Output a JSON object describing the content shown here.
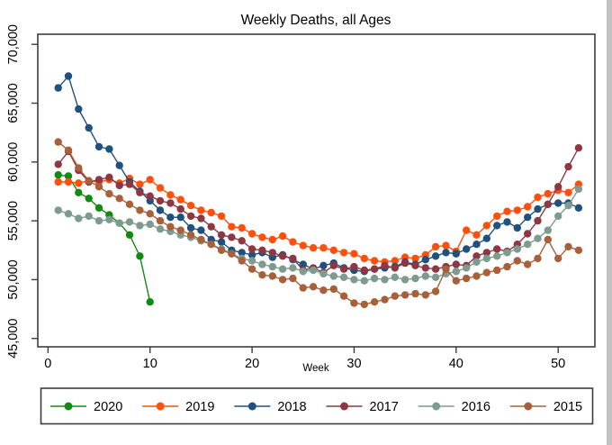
{
  "chart_data": {
    "type": "line",
    "title": "Weekly Deaths, all Ages",
    "xlabel": "Week",
    "ylabel": "",
    "grid": false,
    "legend_position": "bottom",
    "frame_color": "#3d3d3d",
    "xlim": [
      -1,
      53.6
    ],
    "ylim": [
      44290,
      70860
    ],
    "x_ticks": [
      0,
      10,
      20,
      30,
      40,
      50
    ],
    "y_ticks": [
      45000,
      50000,
      55000,
      60000,
      65000,
      70000
    ],
    "y_tick_labels": [
      "45,000",
      "50,000",
      "55,000",
      "60,000",
      "65,000",
      "70,000"
    ],
    "series": [
      {
        "name": "2020",
        "color": "#128a12",
        "start_week": 1,
        "values": [
          58900,
          58800,
          57400,
          56900,
          56100,
          55500,
          54800,
          53800,
          52000,
          48100
        ]
      },
      {
        "name": "2019",
        "color": "#ff4f0f",
        "start_week": 1,
        "values": [
          58300,
          58300,
          58200,
          58400,
          58300,
          58500,
          58200,
          58600,
          58100,
          58500,
          57800,
          57200,
          56800,
          56300,
          55900,
          55700,
          55400,
          54500,
          54400,
          53900,
          53600,
          53400,
          53700,
          53200,
          52900,
          52700,
          52700,
          52500,
          52300,
          52200,
          51800,
          51600,
          51500,
          51600,
          51900,
          51800,
          52100,
          52800,
          52900,
          52400,
          54200,
          53800,
          54600,
          55400,
          55800,
          55900,
          56200,
          57000,
          57300,
          57600,
          57400,
          58100
        ]
      },
      {
        "name": "2018",
        "color": "#20517e",
        "start_week": 1,
        "values": [
          66300,
          67300,
          64500,
          62900,
          61300,
          61100,
          59700,
          58300,
          57500,
          56700,
          55900,
          55300,
          55300,
          54400,
          54200,
          53400,
          53200,
          52500,
          52300,
          52100,
          52300,
          51900,
          52100,
          51700,
          51300,
          50900,
          51200,
          51400,
          51000,
          50800,
          50700,
          50900,
          51000,
          51100,
          51500,
          51300,
          51700,
          52000,
          52300,
          52200,
          52600,
          53000,
          53500,
          54600,
          54900,
          54400,
          55300,
          56000,
          56400,
          56500,
          56500,
          56100
        ]
      },
      {
        "name": "2017",
        "color": "#8e3742",
        "start_week": 1,
        "values": [
          59800,
          60900,
          59300,
          58300,
          58500,
          58700,
          58000,
          58100,
          57400,
          57100,
          56700,
          56500,
          56000,
          55400,
          55200,
          54500,
          53800,
          53600,
          53300,
          52600,
          52500,
          52300,
          52000,
          51800,
          50800,
          51000,
          50600,
          51200,
          50900,
          51100,
          50800,
          50900,
          51200,
          51000,
          51400,
          51200,
          51000,
          50900,
          51100,
          51300,
          51200,
          52000,
          52300,
          52600,
          52400,
          53000,
          53900,
          55000,
          56400,
          57900,
          59600,
          61200
        ]
      },
      {
        "name": "2016",
        "color": "#7d9c8f",
        "start_week": 1,
        "values": [
          55900,
          55600,
          55200,
          55400,
          55000,
          55100,
          54800,
          54900,
          54600,
          54700,
          54300,
          54100,
          53800,
          53600,
          53300,
          53000,
          52600,
          52200,
          51800,
          51600,
          51300,
          51100,
          50900,
          51000,
          50700,
          50800,
          50500,
          50300,
          50200,
          50000,
          49900,
          50100,
          50000,
          50200,
          50000,
          50100,
          50300,
          50200,
          50500,
          50700,
          51000,
          51500,
          51800,
          52000,
          52300,
          52600,
          53000,
          53500,
          54200,
          55400,
          56300,
          57700
        ]
      },
      {
        "name": "2015",
        "color": "#a8603a",
        "start_week": 1,
        "values": [
          61700,
          61000,
          59500,
          58400,
          57900,
          57300,
          56900,
          56400,
          55900,
          55600,
          55000,
          54500,
          54200,
          53800,
          53400,
          53000,
          52500,
          52200,
          51600,
          50900,
          50400,
          50300,
          50000,
          50100,
          49300,
          49400,
          49100,
          49200,
          48600,
          48000,
          47900,
          48100,
          48300,
          48600,
          48700,
          48800,
          48700,
          49000,
          50900,
          49900,
          50100,
          50300,
          50600,
          50800,
          51100,
          51600,
          51300,
          51800,
          53400,
          51800,
          52800,
          52500
        ]
      }
    ]
  }
}
